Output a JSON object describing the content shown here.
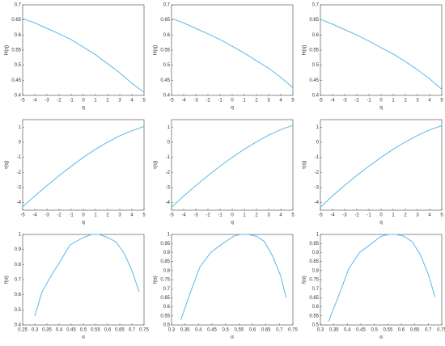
{
  "chart_data": [
    {
      "type": "line",
      "xlabel": "q",
      "ylabel": "H(q)",
      "color": "#5bb8e8",
      "xlim": [
        -5,
        5
      ],
      "ylim": [
        0.4,
        0.7
      ],
      "xticks": [
        -5,
        -4,
        -3,
        -2,
        -1,
        0,
        1,
        2,
        3,
        4,
        5
      ],
      "yticks": [
        0.4,
        0.45,
        0.5,
        0.55,
        0.6,
        0.65,
        0.7
      ],
      "x": [
        -5,
        -4,
        -3,
        -2,
        -1,
        0,
        1,
        2,
        3,
        4,
        5
      ],
      "values": [
        0.655,
        0.64,
        0.622,
        0.604,
        0.585,
        0.56,
        0.535,
        0.505,
        0.475,
        0.44,
        0.41
      ]
    },
    {
      "type": "line",
      "xlabel": "q",
      "ylabel": "H(q)",
      "color": "#5bb8e8",
      "xlim": [
        -5,
        5
      ],
      "ylim": [
        0.4,
        0.7
      ],
      "xticks": [
        -5,
        -4,
        -3,
        -2,
        -1,
        0,
        1,
        2,
        3,
        4,
        5
      ],
      "yticks": [
        0.4,
        0.45,
        0.5,
        0.55,
        0.6,
        0.65,
        0.7
      ],
      "x": [
        -5,
        -4,
        -3,
        -2,
        -1,
        0,
        1,
        2,
        3,
        4,
        5
      ],
      "values": [
        0.655,
        0.64,
        0.622,
        0.604,
        0.585,
        0.563,
        0.54,
        0.515,
        0.49,
        0.46,
        0.425
      ]
    },
    {
      "type": "line",
      "xlabel": "q",
      "ylabel": "H(q)",
      "color": "#5bb8e8",
      "xlim": [
        -5,
        5
      ],
      "ylim": [
        0.4,
        0.7
      ],
      "xticks": [
        -5,
        -4,
        -3,
        -2,
        -1,
        0,
        1,
        2,
        3,
        4,
        5
      ],
      "yticks": [
        0.4,
        0.45,
        0.5,
        0.55,
        0.6,
        0.65,
        0.7
      ],
      "x": [
        -5,
        -4,
        -3,
        -2,
        -1,
        0,
        1,
        2,
        3,
        4,
        5
      ],
      "values": [
        0.652,
        0.636,
        0.618,
        0.6,
        0.58,
        0.558,
        0.537,
        0.512,
        0.485,
        0.455,
        0.42
      ]
    },
    {
      "type": "line",
      "xlabel": "q",
      "ylabel": "τ(q)",
      "color": "#5bb8e8",
      "xlim": [
        -5,
        5
      ],
      "ylim": [
        -4.5,
        1.5
      ],
      "xticks": [
        -5,
        -4,
        -3,
        -2,
        -1,
        0,
        1,
        2,
        3,
        4,
        5
      ],
      "yticks": [
        -4,
        -3,
        -2,
        -1,
        0,
        1
      ],
      "x": [
        -5,
        -4,
        -3,
        -2,
        -1,
        0,
        1,
        2,
        3,
        4,
        5
      ],
      "values": [
        -4.28,
        -3.56,
        -2.87,
        -2.21,
        -1.59,
        -1,
        -0.46,
        0.01,
        0.43,
        0.76,
        1.05
      ]
    },
    {
      "type": "line",
      "xlabel": "q",
      "ylabel": "τ(q)",
      "color": "#5bb8e8",
      "xlim": [
        -5,
        5
      ],
      "ylim": [
        -4.5,
        1.5
      ],
      "xticks": [
        -5,
        -4,
        -3,
        -2,
        -1,
        0,
        1,
        2,
        3,
        4,
        5
      ],
      "yticks": [
        -4,
        -3,
        -2,
        -1,
        0,
        1
      ],
      "x": [
        -5,
        -4,
        -3,
        -2,
        -1,
        0,
        1,
        2,
        3,
        4,
        5
      ],
      "values": [
        -4.3,
        -3.56,
        -2.87,
        -2.21,
        -1.58,
        -1,
        -0.46,
        0.03,
        0.47,
        0.84,
        1.12
      ]
    },
    {
      "type": "line",
      "xlabel": "q",
      "ylabel": "τ(q)",
      "color": "#5bb8e8",
      "xlim": [
        -5,
        5
      ],
      "ylim": [
        -4.5,
        1.5
      ],
      "xticks": [
        -5,
        -4,
        -3,
        -2,
        -1,
        0,
        1,
        2,
        3,
        4,
        5
      ],
      "yticks": [
        -4,
        -3,
        -2,
        -1,
        0,
        1
      ],
      "x": [
        -5,
        -4,
        -3,
        -2,
        -1,
        0,
        1,
        2,
        3,
        4,
        5
      ],
      "values": [
        -4.3,
        -3.55,
        -2.85,
        -2.2,
        -1.58,
        -1,
        -0.46,
        0.02,
        0.45,
        0.82,
        1.1
      ]
    },
    {
      "type": "line",
      "xlabel": "α",
      "ylabel": "f(α)",
      "color": "#5bb8e8",
      "xlim": [
        0.25,
        0.75
      ],
      "ylim": [
        0.4,
        1
      ],
      "xticks": [
        0.25,
        0.3,
        0.35,
        0.4,
        0.45,
        0.5,
        0.55,
        0.6,
        0.65,
        0.7,
        0.75
      ],
      "yticks": [
        0.4,
        0.5,
        0.6,
        0.7,
        0.8,
        0.9,
        1
      ],
      "x": [
        0.3,
        0.33,
        0.365,
        0.4,
        0.445,
        0.5,
        0.535,
        0.565,
        0.6,
        0.635,
        0.67,
        0.7,
        0.73
      ],
      "values": [
        0.46,
        0.62,
        0.72,
        0.81,
        0.93,
        0.98,
        1.0,
        1.0,
        0.98,
        0.95,
        0.87,
        0.76,
        0.62
      ]
    },
    {
      "type": "line",
      "xlabel": "α",
      "ylabel": "f(α)",
      "color": "#5bb8e8",
      "xlim": [
        0.3,
        0.75
      ],
      "ylim": [
        0.5,
        1
      ],
      "xticks": [
        0.3,
        0.35,
        0.4,
        0.45,
        0.5,
        0.55,
        0.6,
        0.65,
        0.7,
        0.75
      ],
      "yticks": [
        0.5,
        0.55,
        0.6,
        0.65,
        0.7,
        0.75,
        0.8,
        0.85,
        0.9,
        0.95,
        1
      ],
      "x": [
        0.335,
        0.37,
        0.405,
        0.445,
        0.49,
        0.53,
        0.555,
        0.585,
        0.615,
        0.645,
        0.675,
        0.705,
        0.725
      ],
      "values": [
        0.53,
        0.68,
        0.82,
        0.9,
        0.95,
        0.99,
        1.0,
        1.0,
        0.99,
        0.96,
        0.88,
        0.77,
        0.65
      ]
    },
    {
      "type": "line",
      "xlabel": "α",
      "ylabel": "f(α)",
      "color": "#5bb8e8",
      "xlim": [
        0.3,
        0.75
      ],
      "ylim": [
        0.5,
        1
      ],
      "xticks": [
        0.3,
        0.35,
        0.4,
        0.45,
        0.5,
        0.55,
        0.6,
        0.65,
        0.7,
        0.75
      ],
      "yticks": [
        0.5,
        0.55,
        0.6,
        0.65,
        0.7,
        0.75,
        0.8,
        0.85,
        0.9,
        0.95,
        1
      ],
      "x": [
        0.33,
        0.37,
        0.405,
        0.445,
        0.49,
        0.525,
        0.555,
        0.58,
        0.61,
        0.64,
        0.67,
        0.7,
        0.725
      ],
      "values": [
        0.52,
        0.67,
        0.81,
        0.9,
        0.95,
        0.99,
        1.0,
        1.0,
        0.99,
        0.96,
        0.89,
        0.78,
        0.655
      ]
    }
  ]
}
